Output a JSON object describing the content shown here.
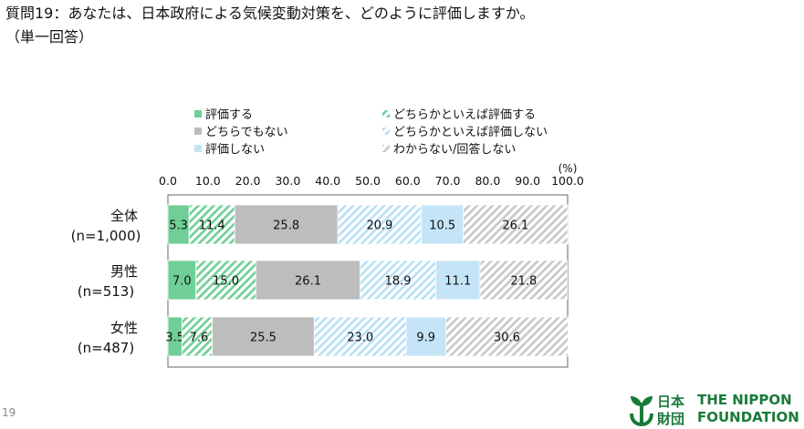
{
  "header": {
    "title": "質問19：あなたは、日本政府による気候変動対策を、どのように評価しますか。",
    "subtitle": "（単一回答）"
  },
  "page_number": "19",
  "logo": {
    "jp_line1": "日本",
    "jp_line2": "財団",
    "en_line1": "THE NIPPON",
    "en_line2": "FOUNDATION"
  },
  "colors": {
    "s1": "#6fcf97",
    "s2_hatch": "#6fcf97",
    "s3": "#bdbdbd",
    "s4_hatch": "#b7e0f5",
    "s5": "#c5e4f7",
    "s6_hatch": "#c8c8c8",
    "brand": "#1a7a3a"
  },
  "chart_data": {
    "type": "bar",
    "orientation": "horizontal-stacked-100",
    "unit_label": "(%)",
    "x_ticks": [
      "0.0",
      "10.0",
      "20.0",
      "30.0",
      "40.0",
      "50.0",
      "60.0",
      "70.0",
      "80.0",
      "90.0",
      "100.0"
    ],
    "xlim": [
      0,
      100
    ],
    "legend": [
      "評価する",
      "どちらかといえば評価する",
      "どちらでもない",
      "どちらかといえば評価しない",
      "評価しない",
      "わからない/回答しない"
    ],
    "legend_position": "top",
    "categories": [
      {
        "line1": "全体",
        "line2": "(n=1,000)"
      },
      {
        "line1": "男性",
        "line2": "(n=513)"
      },
      {
        "line1": "女性",
        "line2": "(n=487)"
      }
    ],
    "series": [
      {
        "name": "評価する",
        "values": [
          5.3,
          7.0,
          3.5
        ],
        "labels": [
          "5.3",
          "7.0",
          "3.5"
        ]
      },
      {
        "name": "どちらかといえば評価する",
        "values": [
          11.4,
          15.0,
          7.6
        ],
        "labels": [
          "11.4",
          "15.0",
          "7.6"
        ]
      },
      {
        "name": "どちらでもない",
        "values": [
          25.8,
          26.1,
          25.5
        ],
        "labels": [
          "25.8",
          "26.1",
          "25.5"
        ]
      },
      {
        "name": "どちらかといえば評価しない",
        "values": [
          20.9,
          18.9,
          23.0
        ],
        "labels": [
          "20.9",
          "18.9",
          "23.0"
        ]
      },
      {
        "name": "評価しない",
        "values": [
          10.5,
          11.1,
          9.9
        ],
        "labels": [
          "10.5",
          "11.1",
          "9.9"
        ]
      },
      {
        "name": "わからない/回答しない",
        "values": [
          26.1,
          21.8,
          30.6
        ],
        "labels": [
          "26.1",
          "21.8",
          "30.6"
        ]
      }
    ]
  }
}
